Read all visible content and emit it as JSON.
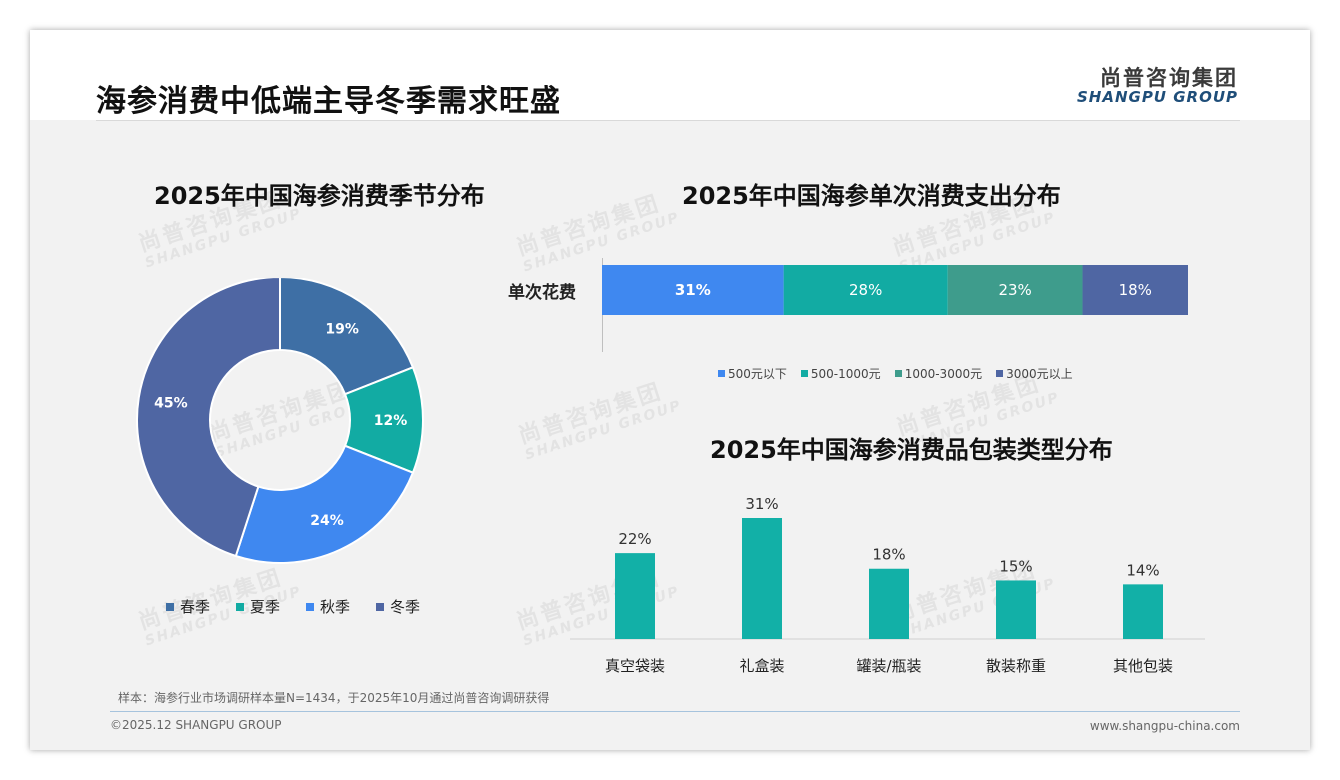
{
  "header": {
    "title": "海参消费中低端主导冬季需求旺盛",
    "logo_cn": "尚普咨询集团",
    "logo_en": "SHANGPU GROUP"
  },
  "watermark": {
    "cn": "尚普咨询集团",
    "en": "SHANGPU GROUP"
  },
  "charts": {
    "season_title": "2025年中国海参消费季节分布",
    "spend_title": "2025年中国海参单次消费支出分布",
    "package_title": "2025年中国海参消费品包装类型分布"
  },
  "spend_row_label": "单次花费",
  "colors": {
    "season": [
      "#3e6fa5",
      "#12aba3",
      "#3f88f0",
      "#4f66a3"
    ],
    "spend": [
      "#3f88f0",
      "#12aba3",
      "#3e9c8c",
      "#4f66a3"
    ],
    "package": "#12b0a7"
  },
  "chart_data": [
    {
      "type": "pie",
      "title": "2025年中国海参消费季节分布",
      "labels": [
        "春季",
        "夏季",
        "秋季",
        "冬季"
      ],
      "values": [
        19,
        12,
        24,
        45
      ],
      "value_labels": [
        "19%",
        "12%",
        "24%",
        "45%"
      ],
      "legend": "bottom"
    },
    {
      "type": "bar",
      "orientation": "horizontal-stacked",
      "title": "2025年中国海参单次消费支出分布",
      "categories": [
        "单次花费"
      ],
      "series": [
        {
          "name": "500元以下",
          "values": [
            31
          ],
          "label": "31%"
        },
        {
          "name": "500-1000元",
          "values": [
            28
          ],
          "label": "28%"
        },
        {
          "name": "1000-3000元",
          "values": [
            23
          ],
          "label": "23%"
        },
        {
          "name": "3000元以上",
          "values": [
            18
          ],
          "label": "18%"
        }
      ],
      "legend": "bottom"
    },
    {
      "type": "bar",
      "title": "2025年中国海参消费品包装类型分布",
      "categories": [
        "真空袋装",
        "礼盒装",
        "罐装/瓶装",
        "散装称重",
        "其他包装"
      ],
      "values": [
        22,
        31,
        18,
        15,
        14
      ],
      "value_labels": [
        "22%",
        "31%",
        "18%",
        "15%",
        "14%"
      ],
      "grid": false
    }
  ],
  "footer": {
    "note": "样本：海参行业市场调研样本量N=1434，于2025年10月通过尚普咨询调研获得",
    "copyright": "©2025.12 SHANGPU GROUP",
    "website": "www.shangpu-china.com"
  }
}
